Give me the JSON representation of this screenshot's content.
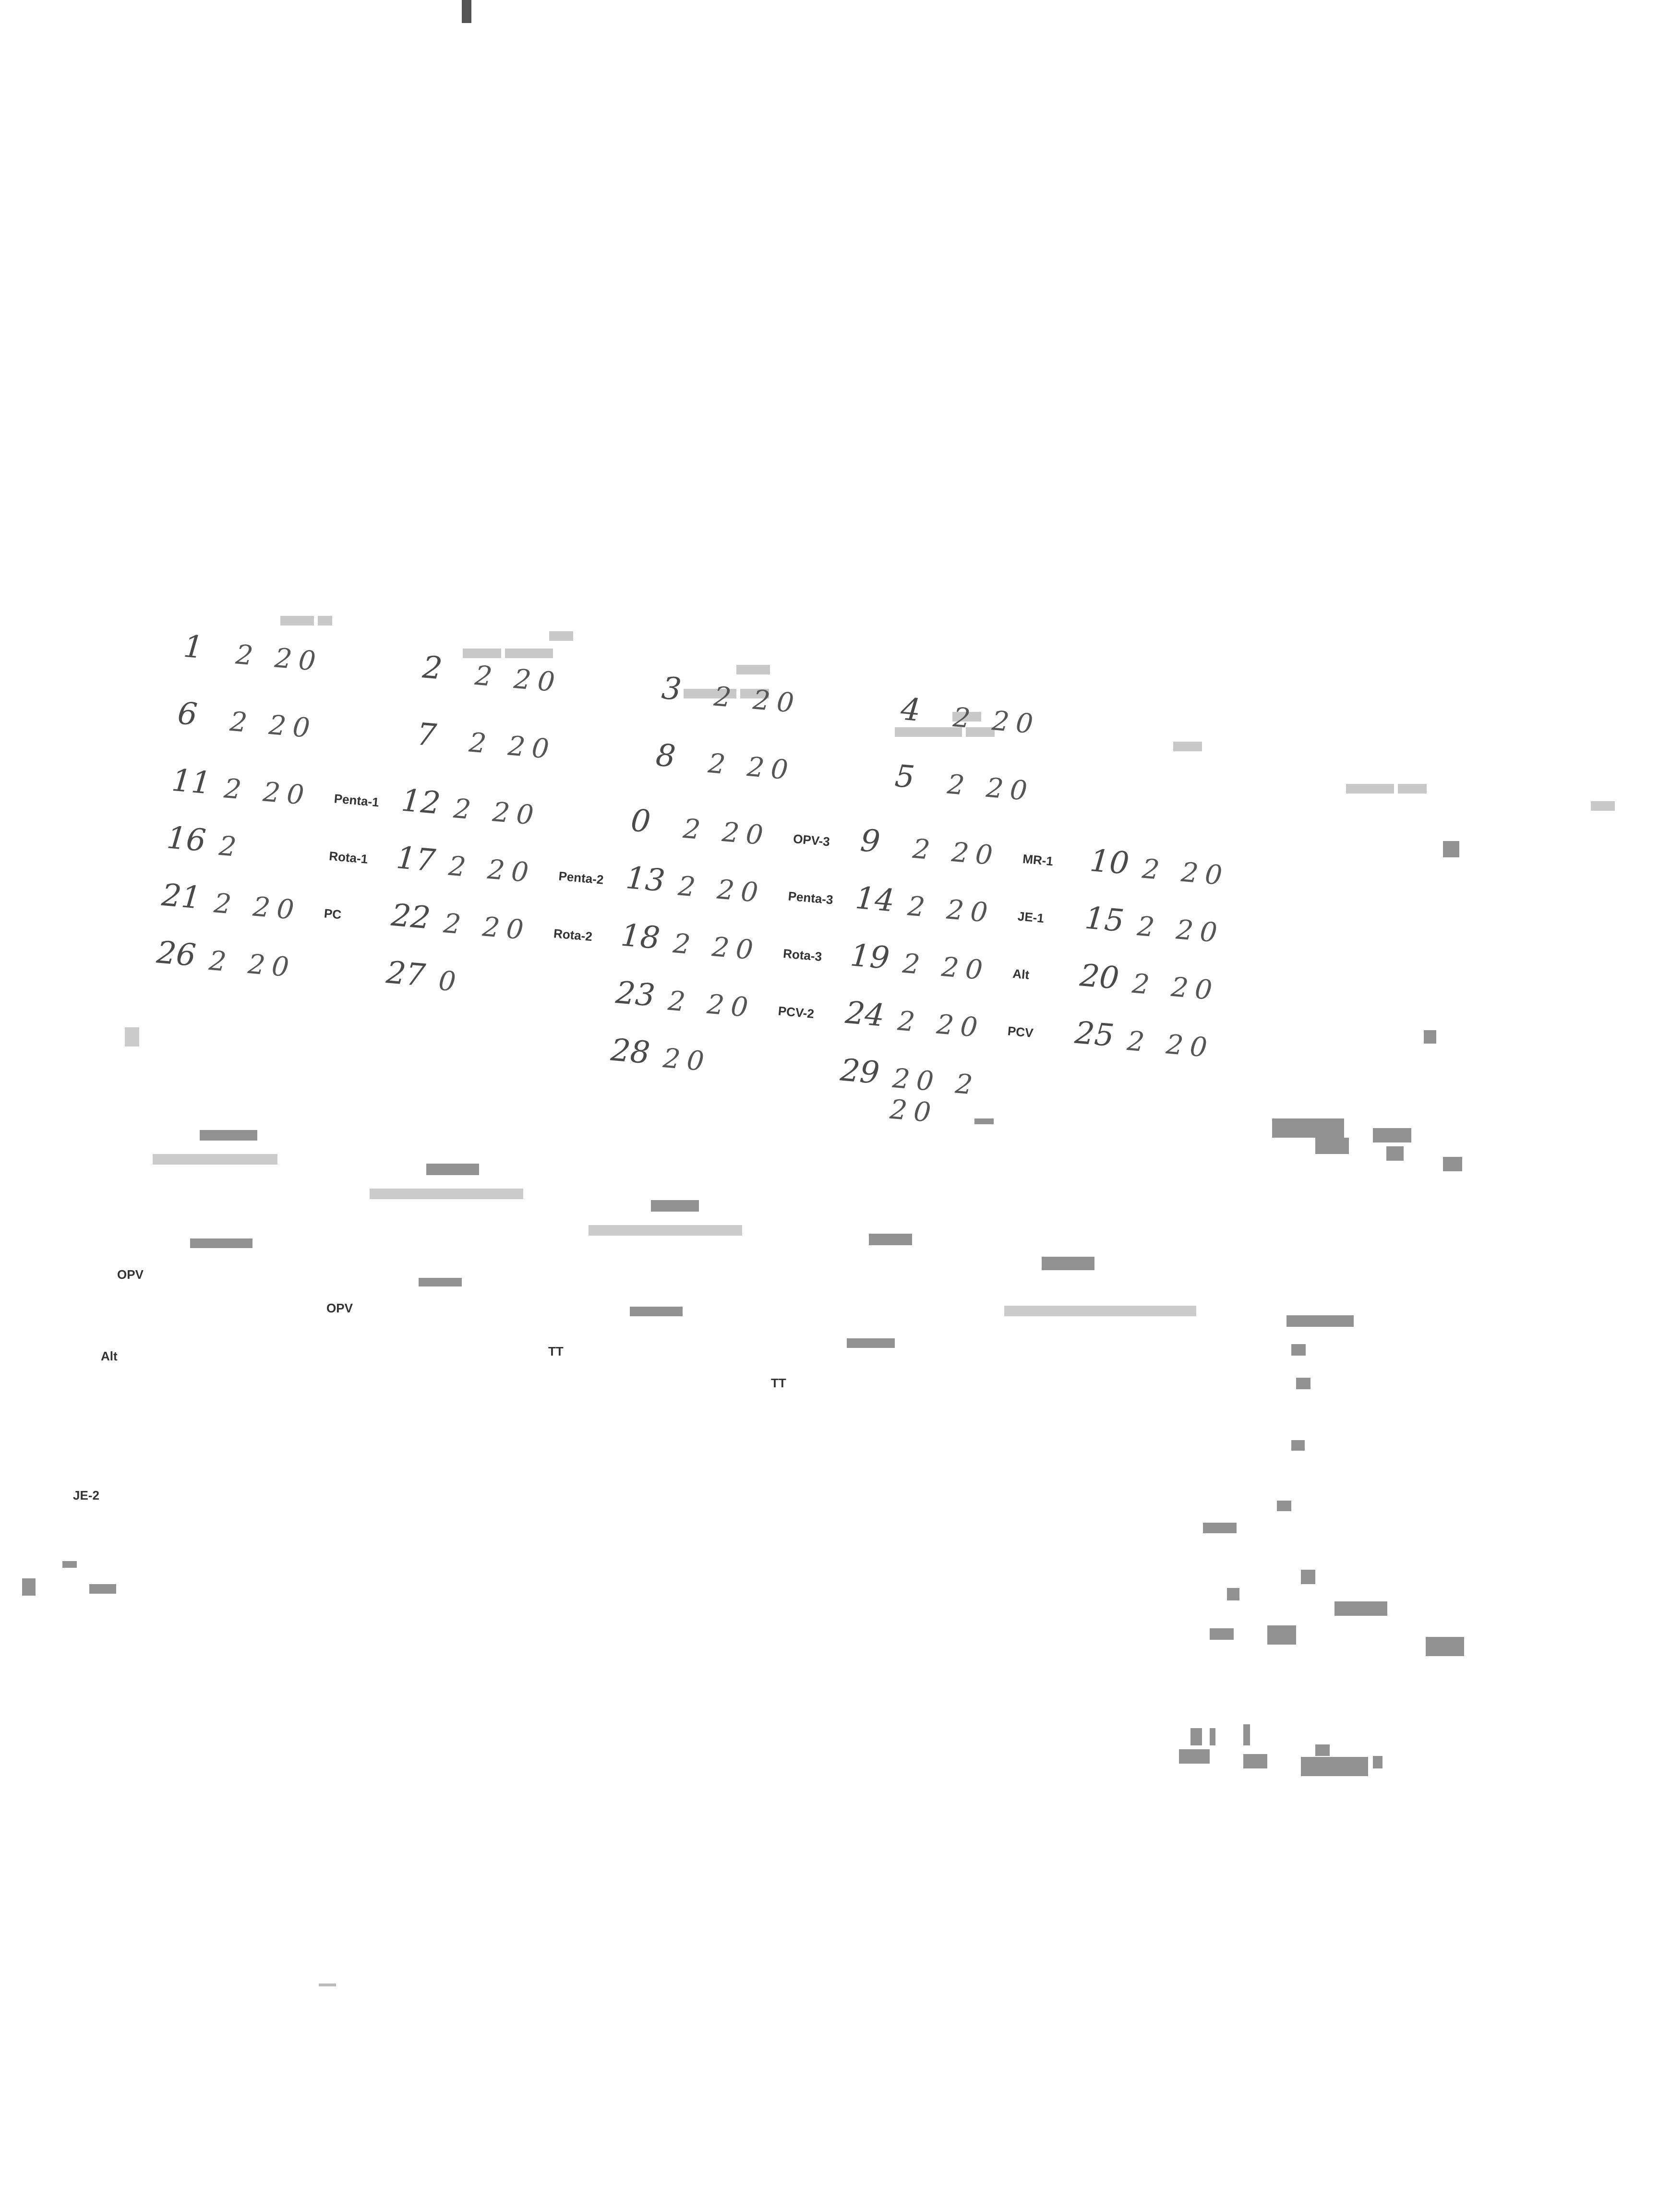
{
  "calendar_rows": [
    [
      {
        "day": "1",
        "year": "2 20"
      },
      {
        "day": "2",
        "year": "2 20"
      },
      {
        "day": "3",
        "year": "2 20"
      },
      {
        "day": "4",
        "year": "2 20"
      }
    ],
    [
      {
        "day": "6",
        "year": "2 20"
      },
      {
        "day": "7",
        "year": "2 20"
      },
      {
        "day": "8",
        "year": "2 20"
      },
      {
        "day": "5",
        "year": "2 20"
      }
    ],
    [
      {
        "day": "11",
        "year": "2 20"
      },
      {
        "day": "12",
        "year": "2 20",
        "code": "Penta-1"
      },
      {
        "day": "0",
        "year": "2 20"
      },
      {
        "day": "9",
        "year": "2 20",
        "code": "OPV-3"
      },
      {
        "day": "10",
        "year": "2 20",
        "code": "MR-1"
      }
    ],
    [
      {
        "day": "16",
        "year": "2"
      },
      {
        "day": "17",
        "year": "2 20",
        "code": "Rota-1"
      },
      {
        "day": "13",
        "year": "2 20",
        "code": "Penta-2"
      },
      {
        "day": "14",
        "year": "2 20",
        "code": "Penta-3"
      },
      {
        "day": "15",
        "year": "2 20",
        "code": "JE-1"
      }
    ],
    [
      {
        "day": "21",
        "year": "2 20"
      },
      {
        "day": "22",
        "year": "2 20",
        "code": "PC"
      },
      {
        "day": "18",
        "year": "2 20",
        "code": "Rota-2"
      },
      {
        "day": "19",
        "year": "2 20",
        "code": "Rota-3"
      },
      {
        "day": "20",
        "year": "2 20",
        "code": "Alt"
      }
    ],
    [
      {
        "day": "26",
        "year": "2 20"
      },
      {
        "day": "27",
        "year": "0"
      },
      {
        "day": "23",
        "year": "2 20"
      },
      {
        "day": "24",
        "year": "2 20",
        "code": "PCV-2"
      },
      {
        "day": "25",
        "year": "2 20",
        "code": "PCV"
      }
    ],
    [
      {
        "day": "28",
        "year": "20"
      },
      {
        "day": "29",
        "year": "20 2 20"
      }
    ]
  ],
  "lower_fragments": [
    {
      "text": "OPV",
      "code": "f1"
    },
    {
      "text": "OPV",
      "code": "f2"
    },
    {
      "text": "TT",
      "code": "f3"
    },
    {
      "text": "TT",
      "code": "f4"
    },
    {
      "text": "JE-2",
      "code": "f5"
    },
    {
      "text": "Alt",
      "code": "f6"
    }
  ]
}
